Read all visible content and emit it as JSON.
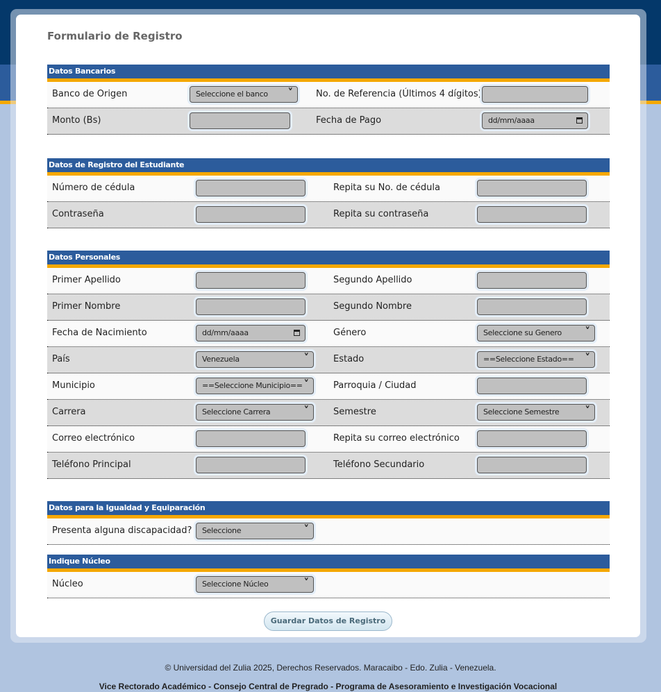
{
  "title": "Formulario de Registro",
  "colors": {
    "header_blue": "#2c5c9c",
    "accent_orange": "#f6a800",
    "dark_blue": "#04386a"
  },
  "sections": [
    {
      "title": "Datos Bancarios",
      "rows": [
        [
          {
            "label": "Banco de Origen",
            "type": "select",
            "value": "Seleccione el banco"
          },
          {
            "label": "No. de Referencia (Últimos 4 dígitos)",
            "type": "text",
            "value": ""
          }
        ],
        [
          {
            "label": "Monto (Bs)",
            "type": "text",
            "value": ""
          },
          {
            "label": "Fecha de Pago",
            "type": "date",
            "value": "dd/mm/aaaa"
          }
        ]
      ]
    },
    {
      "title": "Datos de Registro del Estudiante",
      "rows": [
        [
          {
            "label": "Número de cédula",
            "type": "text",
            "value": ""
          },
          {
            "label": "Repita su No. de cédula",
            "type": "text",
            "value": ""
          }
        ],
        [
          {
            "label": "Contraseña",
            "type": "text",
            "value": ""
          },
          {
            "label": "Repita su contraseña",
            "type": "text",
            "value": ""
          }
        ]
      ]
    },
    {
      "title": "Datos Personales",
      "rows": [
        [
          {
            "label": "Primer Apellido",
            "type": "text",
            "value": ""
          },
          {
            "label": "Segundo Apellido",
            "type": "text",
            "value": ""
          }
        ],
        [
          {
            "label": "Primer Nombre",
            "type": "text",
            "value": ""
          },
          {
            "label": "Segundo Nombre",
            "type": "text",
            "value": ""
          }
        ],
        [
          {
            "label": "Fecha de Nacimiento",
            "type": "date",
            "value": "dd/mm/aaaa"
          },
          {
            "label": "Género",
            "type": "select",
            "value": "Seleccione su Genero"
          }
        ],
        [
          {
            "label": "País",
            "type": "select",
            "value": "Venezuela"
          },
          {
            "label": "Estado",
            "type": "select",
            "value": "==Seleccione Estado=="
          }
        ],
        [
          {
            "label": "Municipio",
            "type": "select",
            "value": "==Seleccione Municipio=="
          },
          {
            "label": "Parroquia / Ciudad",
            "type": "text",
            "value": ""
          }
        ],
        [
          {
            "label": "Carrera",
            "type": "select",
            "value": "Seleccione Carrera"
          },
          {
            "label": "Semestre",
            "type": "select",
            "value": "Seleccione Semestre"
          }
        ],
        [
          {
            "label": "Correo electrónico",
            "type": "text",
            "value": ""
          },
          {
            "label": "Repita su correo electrónico",
            "type": "text",
            "value": ""
          }
        ],
        [
          {
            "label": "Teléfono Principal",
            "type": "text",
            "value": ""
          },
          {
            "label": "Teléfono Secundario",
            "type": "text",
            "value": ""
          }
        ]
      ]
    },
    {
      "title": "Datos para la Igualdad y Equiparación",
      "rows": [
        [
          {
            "label": "Presenta alguna discapacidad?",
            "type": "select",
            "value": "Seleccione"
          }
        ]
      ]
    },
    {
      "title": "Indique Núcleo",
      "rows": [
        [
          {
            "label": "Núcleo",
            "type": "select",
            "value": "Seleccione Núcleo"
          }
        ]
      ]
    }
  ],
  "submit_label": "Guardar Datos de Registro",
  "footer": {
    "copyright": "© Universidad del Zulia 2025, Derechos Reservados. Maracaibo - Edo. Zulia - Venezuela.",
    "credits": "Vice Rectorado Académico - Consejo Central de Pregrado - Programa de Asesoramiento e Investigación Vocacional"
  }
}
